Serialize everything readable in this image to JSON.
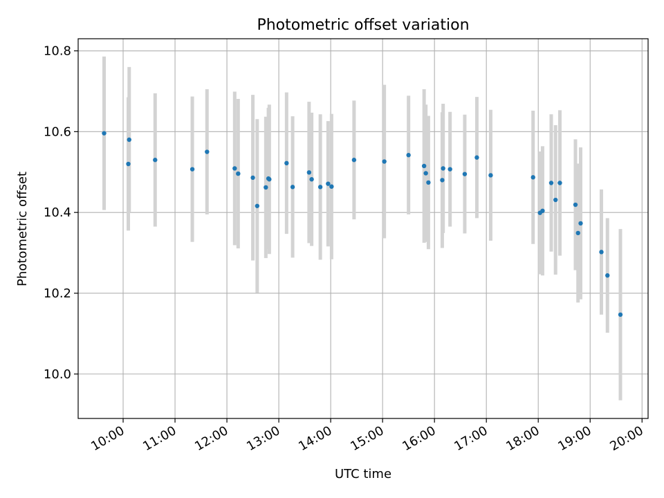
{
  "chart_data": {
    "type": "scatter",
    "title": "Photometric offset variation",
    "xlabel": "UTC time",
    "ylabel": "Photometric offset",
    "x_tick_labels": [
      "10:00",
      "11:00",
      "12:00",
      "13:00",
      "14:00",
      "15:00",
      "16:00",
      "17:00",
      "18:00",
      "19:00",
      "20:00"
    ],
    "y_tick_labels": [
      "10.0",
      "10.2",
      "10.4",
      "10.6",
      "10.8"
    ],
    "xlim": [
      "09:08",
      "20:07"
    ],
    "ylim": [
      9.89,
      10.83
    ],
    "grid": true,
    "colors": {
      "marker": "#1f77b4",
      "errorbar": "#d3d3d3",
      "grid": "#b0b0b0"
    },
    "points": [
      {
        "x": "09:38",
        "y": 10.596,
        "err": 0.19
      },
      {
        "x": "10:06",
        "y": 10.52,
        "err": 0.165
      },
      {
        "x": "10:07",
        "y": 10.58,
        "err": 0.18
      },
      {
        "x": "10:37",
        "y": 10.53,
        "err": 0.165
      },
      {
        "x": "11:20",
        "y": 10.507,
        "err": 0.18
      },
      {
        "x": "11:37",
        "y": 10.55,
        "err": 0.155
      },
      {
        "x": "12:09",
        "y": 10.509,
        "err": 0.19
      },
      {
        "x": "12:13",
        "y": 10.496,
        "err": 0.185
      },
      {
        "x": "12:30",
        "y": 10.486,
        "err": 0.205
      },
      {
        "x": "12:35",
        "y": 10.416,
        "err": 0.215
      },
      {
        "x": "12:45",
        "y": 10.462,
        "err": 0.175
      },
      {
        "x": "12:48",
        "y": 10.484,
        "err": 0.175
      },
      {
        "x": "12:49",
        "y": 10.482,
        "err": 0.185
      },
      {
        "x": "13:09",
        "y": 10.522,
        "err": 0.175
      },
      {
        "x": "13:16",
        "y": 10.463,
        "err": 0.175
      },
      {
        "x": "13:35",
        "y": 10.499,
        "err": 0.175
      },
      {
        "x": "13:38",
        "y": 10.482,
        "err": 0.165
      },
      {
        "x": "13:48",
        "y": 10.463,
        "err": 0.18
      },
      {
        "x": "13:57",
        "y": 10.471,
        "err": 0.155
      },
      {
        "x": "14:01",
        "y": 10.464,
        "err": 0.18
      },
      {
        "x": "14:27",
        "y": 10.53,
        "err": 0.147
      },
      {
        "x": "15:02",
        "y": 10.526,
        "err": 0.19
      },
      {
        "x": "15:30",
        "y": 10.542,
        "err": 0.147
      },
      {
        "x": "15:48",
        "y": 10.515,
        "err": 0.19
      },
      {
        "x": "15:50",
        "y": 10.497,
        "err": 0.17
      },
      {
        "x": "15:53",
        "y": 10.474,
        "err": 0.165
      },
      {
        "x": "16:09",
        "y": 10.48,
        "err": 0.168
      },
      {
        "x": "16:10",
        "y": 10.509,
        "err": 0.16
      },
      {
        "x": "16:18",
        "y": 10.507,
        "err": 0.142
      },
      {
        "x": "16:35",
        "y": 10.495,
        "err": 0.147
      },
      {
        "x": "16:49",
        "y": 10.536,
        "err": 0.15
      },
      {
        "x": "17:05",
        "y": 10.492,
        "err": 0.162
      },
      {
        "x": "17:54",
        "y": 10.487,
        "err": 0.165
      },
      {
        "x": "18:02",
        "y": 10.399,
        "err": 0.152
      },
      {
        "x": "18:05",
        "y": 10.404,
        "err": 0.16
      },
      {
        "x": "18:15",
        "y": 10.473,
        "err": 0.17
      },
      {
        "x": "18:20",
        "y": 10.431,
        "err": 0.185
      },
      {
        "x": "18:25",
        "y": 10.473,
        "err": 0.18
      },
      {
        "x": "18:43",
        "y": 10.419,
        "err": 0.162
      },
      {
        "x": "18:46",
        "y": 10.349,
        "err": 0.172
      },
      {
        "x": "18:49",
        "y": 10.373,
        "err": 0.188
      },
      {
        "x": "19:13",
        "y": 10.302,
        "err": 0.155
      },
      {
        "x": "19:20",
        "y": 10.244,
        "err": 0.142
      },
      {
        "x": "19:35",
        "y": 10.147,
        "err": 0.212
      }
    ]
  }
}
